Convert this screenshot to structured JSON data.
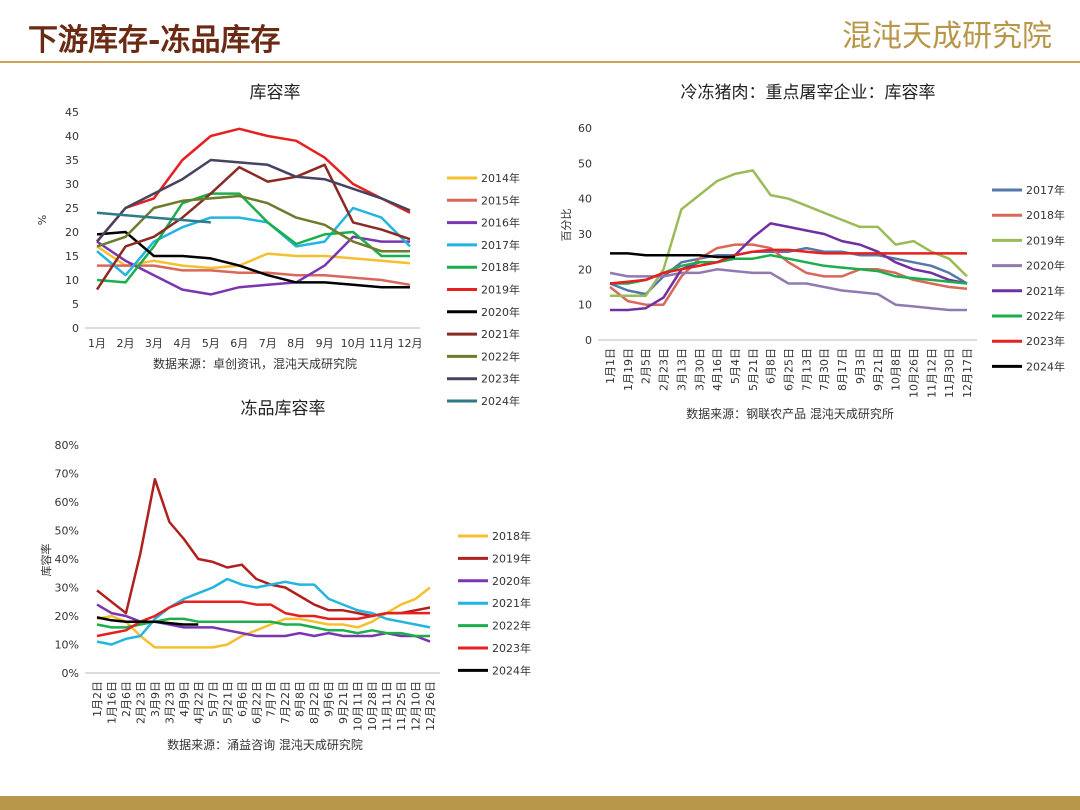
{
  "header": {
    "title": "下游库存-冻品库存",
    "logo": "混沌天成研究院"
  },
  "chart_data": [
    {
      "type": "line",
      "title": "库容率",
      "y_label": "%",
      "note": "数据来源：卓创资讯，混沌天成研究院",
      "categories": [
        "1月",
        "2月",
        "3月",
        "4月",
        "5月",
        "6月",
        "7月",
        "8月",
        "9月",
        "10月",
        "11月",
        "12月"
      ],
      "ylim": [
        0,
        45
      ],
      "yticks": [
        0,
        5,
        10,
        15,
        20,
        25,
        30,
        35,
        40,
        45
      ],
      "legend": "right",
      "series": [
        {
          "name": "2014年",
          "color": "#f5c02f",
          "values": [
            17,
            13,
            14,
            13,
            12.5,
            13,
            15.5,
            15,
            15,
            14.5,
            14,
            13.5
          ]
        },
        {
          "name": "2015年",
          "color": "#d9675a",
          "values": [
            13,
            13,
            13,
            12,
            12,
            11.5,
            11.5,
            11,
            11,
            10.5,
            10,
            9
          ]
        },
        {
          "name": "2016年",
          "color": "#7a35b0",
          "values": [
            18,
            14,
            11,
            8,
            7,
            8.5,
            9,
            9.5,
            13,
            19,
            18,
            18
          ]
        },
        {
          "name": "2017年",
          "color": "#22b5e0",
          "values": [
            16,
            11,
            18,
            21,
            23,
            23,
            22,
            17,
            18,
            25,
            23,
            17
          ]
        },
        {
          "name": "2018年",
          "color": "#1cae4a",
          "values": [
            10,
            9.5,
            17,
            26,
            28,
            28,
            22,
            17.5,
            19.5,
            20,
            15,
            15
          ]
        },
        {
          "name": "2019年",
          "color": "#e5201e",
          "values": [
            18,
            25,
            27,
            35,
            40,
            41.5,
            40,
            39,
            35.5,
            30,
            27,
            24
          ]
        },
        {
          "name": "2020年",
          "color": "#000000",
          "values": [
            19.5,
            20,
            15,
            15,
            14.5,
            13,
            11,
            9.5,
            9.5,
            9,
            8.5,
            8.5
          ]
        },
        {
          "name": "2021年",
          "color": "#8b2a22",
          "values": [
            8,
            17,
            19,
            23,
            28,
            33.5,
            30.5,
            31.5,
            34,
            22,
            20.5,
            18.5
          ]
        },
        {
          "name": "2022年",
          "color": "#6e7a2c",
          "values": [
            17,
            19,
            25,
            26.5,
            27,
            27.5,
            26,
            23,
            21.5,
            18,
            16,
            16
          ]
        },
        {
          "name": "2023年",
          "color": "#47425e",
          "values": [
            18,
            25,
            28,
            31,
            35,
            34.5,
            34,
            31.5,
            31,
            29,
            27,
            24.5
          ]
        },
        {
          "name": "2024年",
          "color": "#2e7a86",
          "values": [
            24,
            23.5,
            23,
            22.5,
            22,
            null,
            null,
            null,
            null,
            null,
            null,
            null
          ]
        }
      ]
    },
    {
      "type": "line",
      "title": "冷冻猪肉：重点屠宰企业：库容率",
      "y_label": "百分比",
      "note": "数据来源：钢联农产品 混沌天成研究所",
      "categories": [
        "1月1日",
        "1月19日",
        "2月5日",
        "2月23日",
        "3月13日",
        "3月30日",
        "4月16日",
        "5月4日",
        "5月21日",
        "6月8日",
        "6月25日",
        "7月13日",
        "7月30日",
        "8月17日",
        "9月3日",
        "9月21日",
        "10月8日",
        "10月26日",
        "11月12日",
        "11月30日",
        "12月17日"
      ],
      "ylim": [
        0,
        60
      ],
      "yticks": [
        0,
        10,
        20,
        30,
        40,
        50,
        60
      ],
      "legend": "right",
      "series": [
        {
          "name": "2017年",
          "color": "#5577aa",
          "values": [
            16,
            14,
            13,
            18,
            22,
            23,
            24,
            24,
            25,
            25,
            25,
            26,
            25,
            25,
            24,
            24,
            23,
            22,
            21,
            19,
            16
          ]
        },
        {
          "name": "2018年",
          "color": "#d9675a",
          "values": [
            15,
            11,
            10,
            10,
            18,
            23,
            26,
            27,
            27,
            26,
            22,
            19,
            18,
            18,
            20,
            20,
            19,
            17,
            16,
            15,
            14.5
          ]
        },
        {
          "name": "2019年",
          "color": "#9bbb59",
          "values": [
            12.5,
            12.5,
            12.5,
            20,
            37,
            41,
            45,
            47,
            48,
            41,
            40,
            38,
            36,
            34,
            32,
            32,
            27,
            28,
            25,
            23,
            18
          ]
        },
        {
          "name": "2020年",
          "color": "#8f7bb0",
          "values": [
            19,
            18,
            18,
            18,
            19,
            19,
            20,
            19.5,
            19,
            19,
            16,
            16,
            15,
            14,
            13.5,
            13,
            10,
            9.5,
            9,
            8.5,
            8.5
          ]
        },
        {
          "name": "2021年",
          "color": "#7030a0",
          "values": [
            8.5,
            8.5,
            9,
            12,
            20,
            22,
            22,
            24,
            29,
            33,
            32,
            31,
            30,
            28,
            27,
            25,
            22,
            20,
            19,
            17,
            16
          ]
        },
        {
          "name": "2022年",
          "color": "#1cae4a",
          "values": [
            16,
            16,
            17,
            19,
            21,
            22,
            22,
            23,
            23,
            24,
            23,
            22,
            21,
            20.5,
            20,
            19.5,
            18,
            17.5,
            17,
            16.5,
            16
          ]
        },
        {
          "name": "2023年",
          "color": "#e5201e",
          "values": [
            16,
            16.5,
            17,
            19,
            20,
            21,
            22,
            24,
            25,
            25.5,
            25.5,
            25,
            24.5,
            24.5,
            24.5,
            24.5,
            24.5,
            24.5,
            24.5,
            24.5,
            24.5
          ]
        },
        {
          "name": "2024年",
          "color": "#000000",
          "values": [
            24.5,
            24.5,
            24,
            24,
            24,
            24,
            23.5,
            23.5,
            null,
            null,
            null,
            null,
            null,
            null,
            null,
            null,
            null,
            null,
            null,
            null,
            null
          ]
        }
      ]
    },
    {
      "type": "line",
      "title": "冻品库容率",
      "y_label": "库容率",
      "note": "数据来源：涌益咨询 混沌天成研究院",
      "categories": [
        "1月2日",
        "1月16日",
        "2月6日",
        "2月23日",
        "3月9日",
        "3月23日",
        "4月9日",
        "4月22日",
        "5月7日",
        "5月21日",
        "6月6日",
        "6月22日",
        "7月7日",
        "7月22日",
        "8月8日",
        "8月22日",
        "9月6日",
        "9月21日",
        "10月11日",
        "10月28日",
        "11月11日",
        "11月25日",
        "12月10日",
        "12月26日"
      ],
      "ylim": [
        0,
        80
      ],
      "yticks": [
        {
          "value": 0,
          "label": "0%"
        },
        {
          "value": 10,
          "label": "10%"
        },
        {
          "value": 20,
          "label": "20%"
        },
        {
          "value": 30,
          "label": "30%"
        },
        {
          "value": 40,
          "label": "40%"
        },
        {
          "value": 50,
          "label": "50%"
        },
        {
          "value": 60,
          "label": "60%"
        },
        {
          "value": 70,
          "label": "70%"
        },
        {
          "value": 80,
          "label": "80%"
        }
      ],
      "legend": "right",
      "series": [
        {
          "name": "2018年",
          "color": "#f5c02f",
          "values": [
            19,
            20,
            18,
            13,
            9,
            9,
            9,
            9,
            9,
            10,
            13,
            15,
            17,
            19,
            19,
            18,
            17,
            17,
            16,
            18,
            21,
            24,
            26,
            30
          ]
        },
        {
          "name": "2019年",
          "color": "#b0201e",
          "values": [
            29,
            25,
            21,
            42,
            68,
            53,
            47,
            40,
            39,
            37,
            38,
            33,
            31,
            30,
            27,
            24,
            22,
            22,
            21,
            20,
            21,
            21,
            22,
            23
          ]
        },
        {
          "name": "2020年",
          "color": "#7a35b0",
          "values": [
            24,
            21,
            20,
            18,
            18,
            17,
            16,
            16,
            16,
            15,
            14,
            13,
            13,
            13,
            14,
            13,
            14,
            13,
            13,
            13,
            14,
            13,
            13,
            11
          ]
        },
        {
          "name": "2021年",
          "color": "#22b5e0",
          "values": [
            11,
            10,
            12,
            13,
            19,
            23,
            26,
            28,
            30,
            33,
            31,
            30,
            31,
            32,
            31,
            31,
            26,
            24,
            22,
            21,
            19,
            18,
            17,
            16
          ]
        },
        {
          "name": "2022年",
          "color": "#1cae4a",
          "values": [
            17,
            16,
            16,
            17,
            18,
            19,
            19,
            18,
            18,
            18,
            18,
            18,
            18,
            17,
            17,
            16,
            15,
            15,
            14,
            15,
            14,
            14,
            13,
            13
          ]
        },
        {
          "name": "2023年",
          "color": "#e5201e",
          "values": [
            13,
            14,
            15,
            18,
            20,
            23,
            25,
            25,
            25,
            25,
            25,
            24,
            24,
            21,
            20,
            20,
            19,
            19,
            19,
            20,
            21,
            21,
            21,
            21
          ]
        },
        {
          "name": "2024年",
          "color": "#000000",
          "values": [
            19.5,
            18.5,
            18,
            18,
            18,
            17.5,
            17,
            17,
            null,
            null,
            null,
            null,
            null,
            null,
            null,
            null,
            null,
            null,
            null,
            null,
            null,
            null,
            null,
            null
          ]
        }
      ]
    }
  ]
}
